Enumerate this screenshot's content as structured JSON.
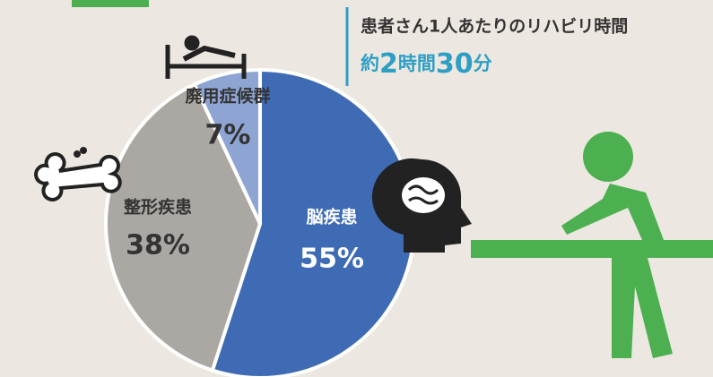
{
  "chart_data": {
    "type": "pie",
    "categories": [
      "脳疾患",
      "整形疾患",
      "廃用症候群"
    ],
    "values": [
      55,
      38,
      7
    ],
    "value_labels": [
      "55%",
      "38%",
      "7%"
    ],
    "colors": [
      "#3f6bb4",
      "#aba7a3",
      "#8ea5d4"
    ],
    "label_colors": [
      "#ffffff",
      "#333333",
      "#333333"
    ],
    "annotation": "患者さん1人あたりのリハビリ時間",
    "total_time_parts": [
      "約",
      "2",
      "時間",
      "30",
      "分"
    ]
  }
}
